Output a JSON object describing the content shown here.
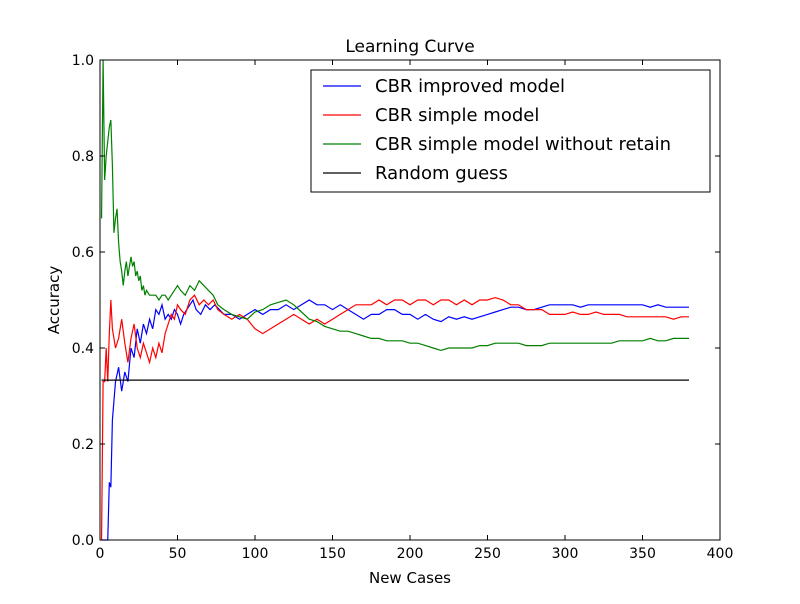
{
  "chart_data": {
    "type": "line",
    "title": "Learning Curve",
    "xlabel": "New Cases",
    "ylabel": "Accuracy",
    "xlim": [
      0,
      400
    ],
    "ylim": [
      0,
      1.0
    ],
    "xticks": [
      0,
      50,
      100,
      150,
      200,
      250,
      300,
      350,
      400
    ],
    "yticks": [
      0.0,
      0.2,
      0.4,
      0.6,
      0.8,
      1.0
    ],
    "xtick_labels": [
      "0",
      "50",
      "100",
      "150",
      "200",
      "250",
      "300",
      "350",
      "400"
    ],
    "ytick_labels": [
      "0.0",
      "0.2",
      "0.4",
      "0.6",
      "0.8",
      "1.0"
    ],
    "grid": false,
    "legend_position": "top-right",
    "series": [
      {
        "name": "CBR improved model",
        "color": "#0000ff",
        "points": [
          [
            1,
            0.0
          ],
          [
            3,
            0.0
          ],
          [
            5,
            0.0
          ],
          [
            6,
            0.12
          ],
          [
            7,
            0.11
          ],
          [
            8,
            0.25
          ],
          [
            10,
            0.33
          ],
          [
            12,
            0.36
          ],
          [
            14,
            0.31
          ],
          [
            16,
            0.35
          ],
          [
            18,
            0.33
          ],
          [
            20,
            0.4
          ],
          [
            22,
            0.38
          ],
          [
            24,
            0.44
          ],
          [
            26,
            0.41
          ],
          [
            28,
            0.45
          ],
          [
            30,
            0.43
          ],
          [
            32,
            0.46
          ],
          [
            34,
            0.44
          ],
          [
            36,
            0.48
          ],
          [
            38,
            0.47
          ],
          [
            40,
            0.49
          ],
          [
            42,
            0.46
          ],
          [
            44,
            0.47
          ],
          [
            46,
            0.46
          ],
          [
            48,
            0.48
          ],
          [
            50,
            0.47
          ],
          [
            52,
            0.45
          ],
          [
            54,
            0.47
          ],
          [
            56,
            0.48
          ],
          [
            58,
            0.49
          ],
          [
            60,
            0.5
          ],
          [
            62,
            0.48
          ],
          [
            65,
            0.47
          ],
          [
            68,
            0.49
          ],
          [
            71,
            0.48
          ],
          [
            74,
            0.49
          ],
          [
            77,
            0.48
          ],
          [
            80,
            0.47
          ],
          [
            85,
            0.47
          ],
          [
            90,
            0.46
          ],
          [
            95,
            0.47
          ],
          [
            100,
            0.48
          ],
          [
            105,
            0.47
          ],
          [
            110,
            0.48
          ],
          [
            115,
            0.48
          ],
          [
            120,
            0.49
          ],
          [
            125,
            0.48
          ],
          [
            130,
            0.49
          ],
          [
            135,
            0.5
          ],
          [
            140,
            0.49
          ],
          [
            145,
            0.49
          ],
          [
            150,
            0.48
          ],
          [
            155,
            0.49
          ],
          [
            160,
            0.48
          ],
          [
            165,
            0.47
          ],
          [
            170,
            0.46
          ],
          [
            175,
            0.47
          ],
          [
            180,
            0.47
          ],
          [
            185,
            0.48
          ],
          [
            190,
            0.48
          ],
          [
            195,
            0.47
          ],
          [
            200,
            0.47
          ],
          [
            205,
            0.46
          ],
          [
            210,
            0.47
          ],
          [
            215,
            0.46
          ],
          [
            220,
            0.455
          ],
          [
            225,
            0.465
          ],
          [
            230,
            0.46
          ],
          [
            235,
            0.465
          ],
          [
            240,
            0.46
          ],
          [
            245,
            0.465
          ],
          [
            250,
            0.47
          ],
          [
            255,
            0.475
          ],
          [
            260,
            0.48
          ],
          [
            265,
            0.485
          ],
          [
            270,
            0.485
          ],
          [
            275,
            0.48
          ],
          [
            280,
            0.48
          ],
          [
            285,
            0.485
          ],
          [
            290,
            0.49
          ],
          [
            295,
            0.49
          ],
          [
            300,
            0.49
          ],
          [
            305,
            0.49
          ],
          [
            310,
            0.485
          ],
          [
            315,
            0.49
          ],
          [
            320,
            0.49
          ],
          [
            325,
            0.49
          ],
          [
            330,
            0.49
          ],
          [
            335,
            0.49
          ],
          [
            340,
            0.49
          ],
          [
            345,
            0.49
          ],
          [
            350,
            0.49
          ],
          [
            355,
            0.485
          ],
          [
            360,
            0.49
          ],
          [
            365,
            0.485
          ],
          [
            370,
            0.485
          ],
          [
            375,
            0.485
          ],
          [
            380,
            0.485
          ]
        ]
      },
      {
        "name": "CBR simple model",
        "color": "#ff0000",
        "points": [
          [
            1,
            0.0
          ],
          [
            2,
            0.33
          ],
          [
            3,
            0.33
          ],
          [
            4,
            0.4
          ],
          [
            5,
            0.33
          ],
          [
            6,
            0.43
          ],
          [
            7,
            0.5
          ],
          [
            8,
            0.44
          ],
          [
            10,
            0.4
          ],
          [
            12,
            0.42
          ],
          [
            14,
            0.46
          ],
          [
            16,
            0.41
          ],
          [
            18,
            0.37
          ],
          [
            20,
            0.42
          ],
          [
            22,
            0.45
          ],
          [
            24,
            0.4
          ],
          [
            26,
            0.38
          ],
          [
            28,
            0.41
          ],
          [
            30,
            0.39
          ],
          [
            32,
            0.37
          ],
          [
            34,
            0.4
          ],
          [
            36,
            0.38
          ],
          [
            38,
            0.41
          ],
          [
            40,
            0.39
          ],
          [
            42,
            0.43
          ],
          [
            44,
            0.45
          ],
          [
            46,
            0.47
          ],
          [
            48,
            0.46
          ],
          [
            50,
            0.49
          ],
          [
            52,
            0.48
          ],
          [
            55,
            0.47
          ],
          [
            58,
            0.5
          ],
          [
            61,
            0.51
          ],
          [
            64,
            0.49
          ],
          [
            67,
            0.5
          ],
          [
            70,
            0.49
          ],
          [
            73,
            0.5
          ],
          [
            76,
            0.48
          ],
          [
            80,
            0.47
          ],
          [
            85,
            0.46
          ],
          [
            90,
            0.47
          ],
          [
            95,
            0.46
          ],
          [
            100,
            0.44
          ],
          [
            105,
            0.43
          ],
          [
            110,
            0.44
          ],
          [
            115,
            0.45
          ],
          [
            120,
            0.46
          ],
          [
            125,
            0.47
          ],
          [
            130,
            0.46
          ],
          [
            135,
            0.45
          ],
          [
            140,
            0.46
          ],
          [
            145,
            0.45
          ],
          [
            150,
            0.46
          ],
          [
            155,
            0.47
          ],
          [
            160,
            0.48
          ],
          [
            165,
            0.49
          ],
          [
            170,
            0.49
          ],
          [
            175,
            0.49
          ],
          [
            180,
            0.5
          ],
          [
            185,
            0.49
          ],
          [
            190,
            0.5
          ],
          [
            195,
            0.5
          ],
          [
            200,
            0.49
          ],
          [
            205,
            0.5
          ],
          [
            210,
            0.5
          ],
          [
            215,
            0.49
          ],
          [
            220,
            0.5
          ],
          [
            225,
            0.5
          ],
          [
            230,
            0.49
          ],
          [
            235,
            0.5
          ],
          [
            240,
            0.49
          ],
          [
            245,
            0.5
          ],
          [
            250,
            0.5
          ],
          [
            255,
            0.505
          ],
          [
            260,
            0.5
          ],
          [
            265,
            0.49
          ],
          [
            270,
            0.49
          ],
          [
            275,
            0.48
          ],
          [
            280,
            0.48
          ],
          [
            285,
            0.48
          ],
          [
            290,
            0.47
          ],
          [
            295,
            0.47
          ],
          [
            300,
            0.47
          ],
          [
            305,
            0.475
          ],
          [
            310,
            0.47
          ],
          [
            315,
            0.47
          ],
          [
            320,
            0.475
          ],
          [
            325,
            0.47
          ],
          [
            330,
            0.47
          ],
          [
            335,
            0.47
          ],
          [
            340,
            0.465
          ],
          [
            345,
            0.465
          ],
          [
            350,
            0.465
          ],
          [
            355,
            0.465
          ],
          [
            360,
            0.465
          ],
          [
            365,
            0.465
          ],
          [
            370,
            0.46
          ],
          [
            375,
            0.465
          ],
          [
            380,
            0.465
          ]
        ]
      },
      {
        "name": "CBR simple model without retain",
        "color": "#008000",
        "points": [
          [
            1,
            0.67
          ],
          [
            2,
            1.0
          ],
          [
            3,
            0.75
          ],
          [
            4,
            0.8
          ],
          [
            5,
            0.83
          ],
          [
            6,
            0.86
          ],
          [
            7,
            0.875
          ],
          [
            8,
            0.78
          ],
          [
            9,
            0.64
          ],
          [
            10,
            0.67
          ],
          [
            11,
            0.69
          ],
          [
            12,
            0.62
          ],
          [
            13,
            0.58
          ],
          [
            14,
            0.56
          ],
          [
            15,
            0.53
          ],
          [
            16,
            0.56
          ],
          [
            17,
            0.58
          ],
          [
            18,
            0.55
          ],
          [
            19,
            0.57
          ],
          [
            20,
            0.59
          ],
          [
            21,
            0.57
          ],
          [
            22,
            0.58
          ],
          [
            23,
            0.55
          ],
          [
            24,
            0.56
          ],
          [
            25,
            0.54
          ],
          [
            26,
            0.55
          ],
          [
            27,
            0.52
          ],
          [
            28,
            0.53
          ],
          [
            29,
            0.51
          ],
          [
            30,
            0.52
          ],
          [
            32,
            0.51
          ],
          [
            34,
            0.51
          ],
          [
            36,
            0.51
          ],
          [
            38,
            0.5
          ],
          [
            40,
            0.51
          ],
          [
            42,
            0.51
          ],
          [
            44,
            0.5
          ],
          [
            46,
            0.51
          ],
          [
            48,
            0.52
          ],
          [
            50,
            0.53
          ],
          [
            52,
            0.52
          ],
          [
            55,
            0.51
          ],
          [
            58,
            0.53
          ],
          [
            61,
            0.52
          ],
          [
            64,
            0.54
          ],
          [
            67,
            0.53
          ],
          [
            70,
            0.52
          ],
          [
            73,
            0.51
          ],
          [
            76,
            0.49
          ],
          [
            80,
            0.48
          ],
          [
            85,
            0.47
          ],
          [
            90,
            0.465
          ],
          [
            95,
            0.46
          ],
          [
            100,
            0.475
          ],
          [
            105,
            0.48
          ],
          [
            110,
            0.49
          ],
          [
            115,
            0.495
          ],
          [
            120,
            0.5
          ],
          [
            125,
            0.49
          ],
          [
            130,
            0.475
          ],
          [
            135,
            0.46
          ],
          [
            140,
            0.455
          ],
          [
            145,
            0.445
          ],
          [
            150,
            0.44
          ],
          [
            155,
            0.435
          ],
          [
            160,
            0.435
          ],
          [
            165,
            0.43
          ],
          [
            170,
            0.425
          ],
          [
            175,
            0.42
          ],
          [
            180,
            0.42
          ],
          [
            185,
            0.415
          ],
          [
            190,
            0.415
          ],
          [
            195,
            0.415
          ],
          [
            200,
            0.41
          ],
          [
            205,
            0.41
          ],
          [
            210,
            0.405
          ],
          [
            215,
            0.4
          ],
          [
            220,
            0.395
          ],
          [
            225,
            0.4
          ],
          [
            230,
            0.4
          ],
          [
            235,
            0.4
          ],
          [
            240,
            0.4
          ],
          [
            245,
            0.405
          ],
          [
            250,
            0.405
          ],
          [
            255,
            0.41
          ],
          [
            260,
            0.41
          ],
          [
            265,
            0.41
          ],
          [
            270,
            0.41
          ],
          [
            275,
            0.405
          ],
          [
            280,
            0.405
          ],
          [
            285,
            0.405
          ],
          [
            290,
            0.41
          ],
          [
            295,
            0.41
          ],
          [
            300,
            0.41
          ],
          [
            305,
            0.41
          ],
          [
            310,
            0.41
          ],
          [
            315,
            0.41
          ],
          [
            320,
            0.41
          ],
          [
            325,
            0.41
          ],
          [
            330,
            0.41
          ],
          [
            335,
            0.415
          ],
          [
            340,
            0.415
          ],
          [
            345,
            0.415
          ],
          [
            350,
            0.415
          ],
          [
            355,
            0.42
          ],
          [
            360,
            0.415
          ],
          [
            365,
            0.415
          ],
          [
            370,
            0.42
          ],
          [
            375,
            0.42
          ],
          [
            380,
            0.42
          ]
        ]
      },
      {
        "name": "Random guess",
        "color": "#000000",
        "points": [
          [
            1,
            0.333
          ],
          [
            380,
            0.333
          ]
        ]
      }
    ]
  }
}
